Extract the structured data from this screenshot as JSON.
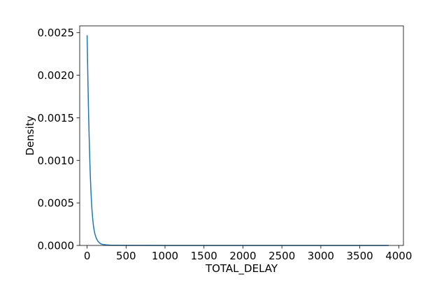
{
  "chart_data": {
    "type": "line",
    "title": "",
    "xlabel": "TOTAL_DELAY",
    "ylabel": "Density",
    "xlim": [
      -95,
      4060
    ],
    "ylim": [
      0,
      0.00258
    ],
    "x_ticks": [
      0,
      500,
      1000,
      1500,
      2000,
      2500,
      3000,
      3500,
      4000
    ],
    "x_tick_labels": [
      "0",
      "500",
      "1000",
      "1500",
      "2000",
      "2500",
      "3000",
      "3500",
      "4000"
    ],
    "y_ticks": [
      0,
      0.0005,
      0.001,
      0.0015,
      0.002,
      0.0025
    ],
    "y_tick_labels": [
      "0.0000",
      "0.0005",
      "0.0010",
      "0.0015",
      "0.0020",
      "0.0025"
    ],
    "grid": false,
    "series": [
      {
        "color": "#1f77b4",
        "x": [
          0,
          10,
          20,
          30,
          40,
          50,
          60,
          70,
          80,
          90,
          100,
          120,
          140,
          160,
          180,
          200,
          250,
          300,
          400,
          500,
          700,
          1000,
          1500,
          2000,
          2500,
          3000,
          3500,
          3870
        ],
        "y": [
          0.00247,
          0.00195,
          0.0015,
          0.00115,
          0.00085,
          0.00062,
          0.00045,
          0.00033,
          0.00024,
          0.00018,
          0.000135,
          8e-05,
          4.8e-05,
          2.9e-05,
          1.8e-05,
          1.2e-05,
          6e-06,
          3.5e-06,
          1.8e-06,
          1e-06,
          6e-07,
          4e-07,
          3e-07,
          2e-07,
          2e-07,
          1e-07,
          1e-07,
          1e-07
        ]
      }
    ]
  }
}
